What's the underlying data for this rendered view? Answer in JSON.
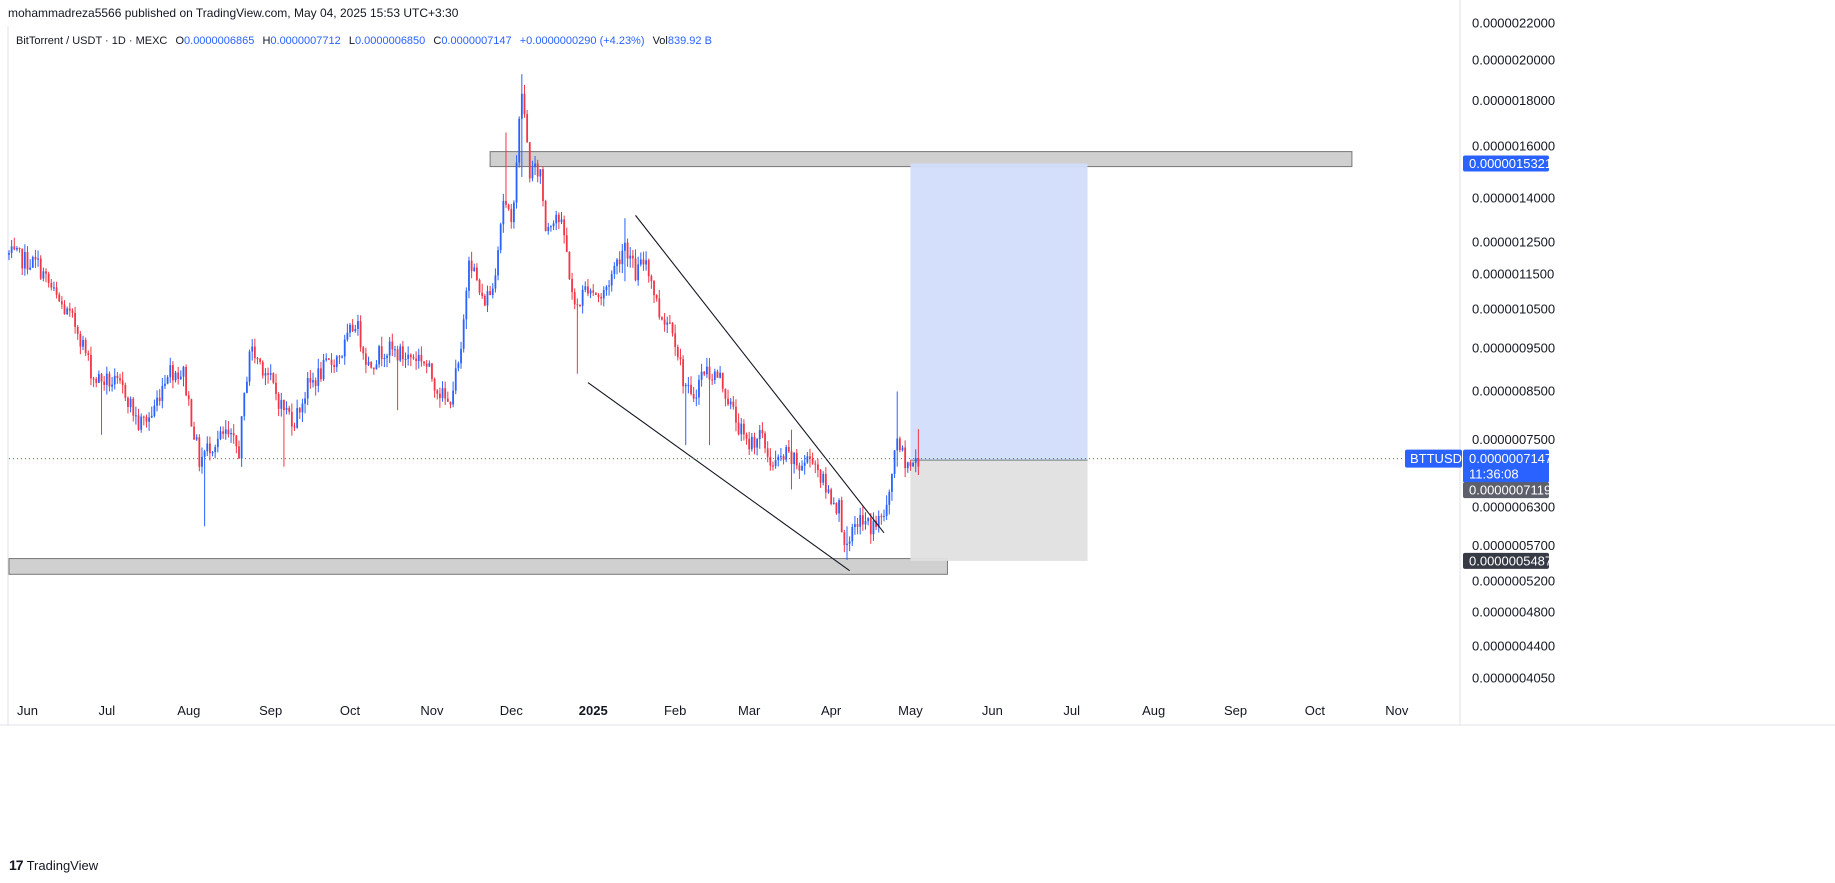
{
  "header": {
    "publisher": "mohammadreza5566 published on TradingView.com, May 04, 2025 15:53 UTC+3:30"
  },
  "legend": {
    "symbol": "BitTorrent / USDT · 1D · MEXC",
    "o_label": "O",
    "o_value": "0.0000006865",
    "h_label": "H",
    "h_value": "0.0000007712",
    "l_label": "L",
    "l_value": "0.0000006850",
    "c_label": "C",
    "c_value": "0.0000007147",
    "change": "+0.0000000290 (+4.23%)",
    "vol_label": "Vol",
    "vol_value": "839.92 B"
  },
  "footer": {
    "brand": "TradingView"
  },
  "colors": {
    "up": "#2962ff",
    "down": "#f23645",
    "zone_fill": "#c8c8c8",
    "zone_stroke": "#777777",
    "target_fill": "#d1ddfb",
    "stop_fill": "#e0e0e0",
    "tag_blue": "#2962ff",
    "tag_dark": "#5d606b",
    "tag_symbol": "#2962ff",
    "price_line": "#2962ff"
  },
  "chart_data": {
    "type": "candlestick",
    "symbol": "BitTorrent / USDT",
    "interval": "1D",
    "exchange": "MEXC",
    "y_scale": "log",
    "ylim": [
      3.9e-07,
      2.22e-06
    ],
    "y_ticks": [
      "0.0000022000",
      "0.0000020000",
      "0.0000018000",
      "0.0000016000",
      "0.0000014000",
      "0.0000012500",
      "0.0000011500",
      "0.0000010500",
      "0.0000009500",
      "0.0000008500",
      "0.0000007500",
      "0.0000006300",
      "0.0000005700",
      "0.0000005200",
      "0.0000004800",
      "0.0000004400",
      "0.0000004050"
    ],
    "x_ticks": [
      "Jun",
      "Jul",
      "Aug",
      "Sep",
      "Oct",
      "Nov",
      "Dec",
      "2025",
      "Feb",
      "Mar",
      "Apr",
      "May",
      "Jun",
      "Jul",
      "Aug",
      "Sep",
      "Oct",
      "Nov"
    ],
    "x_tick_dates": [
      "2024-06-01",
      "2024-07-01",
      "2024-08-01",
      "2024-09-01",
      "2024-10-01",
      "2024-11-01",
      "2024-12-01",
      "2025-01-01",
      "2025-02-01",
      "2025-03-01",
      "2025-04-01",
      "2025-05-01",
      "2025-06-01",
      "2025-07-01",
      "2025-08-01",
      "2025-09-01",
      "2025-10-01",
      "2025-11-01"
    ],
    "x_range": [
      "2024-05-25",
      "2025-11-23"
    ],
    "price_path": [
      [
        "2024-05-25",
        1.21e-06
      ],
      [
        "2024-06-05",
        1.18e-06
      ],
      [
        "2024-06-12",
        1.08e-06
      ],
      [
        "2024-06-20",
        1e-06
      ],
      [
        "2024-06-26",
        8.8e-07
      ],
      [
        "2024-07-03",
        8.7e-07
      ],
      [
        "2024-07-08",
        8.5e-07
      ],
      [
        "2024-07-13",
        7.8e-07
      ],
      [
        "2024-07-18",
        8e-07
      ],
      [
        "2024-07-24",
        9e-07
      ],
      [
        "2024-07-30",
        8.9e-07
      ],
      [
        "2024-08-05",
        7.1e-07
      ],
      [
        "2024-08-09",
        7.4e-07
      ],
      [
        "2024-08-15",
        7.6e-07
      ],
      [
        "2024-08-20",
        7.3e-07
      ],
      [
        "2024-08-24",
        9.5e-07
      ],
      [
        "2024-08-30",
        9e-07
      ],
      [
        "2024-09-05",
        8.2e-07
      ],
      [
        "2024-09-10",
        7.9e-07
      ],
      [
        "2024-09-15",
        8.6e-07
      ],
      [
        "2024-09-21",
        9e-07
      ],
      [
        "2024-09-28",
        9.4e-07
      ],
      [
        "2024-10-03",
        1.02e-06
      ],
      [
        "2024-10-08",
        9.1e-07
      ],
      [
        "2024-10-14",
        9.5e-07
      ],
      [
        "2024-10-22",
        9.3e-07
      ],
      [
        "2024-10-28",
        9.3e-07
      ],
      [
        "2024-11-03",
        8.6e-07
      ],
      [
        "2024-11-07",
        8.2e-07
      ],
      [
        "2024-11-12",
        9.3e-07
      ],
      [
        "2024-11-15",
        1.22e-06
      ],
      [
        "2024-11-20",
        1.07e-06
      ],
      [
        "2024-11-24",
        1.11e-06
      ],
      [
        "2024-11-28",
        1.4e-06
      ],
      [
        "2024-12-01",
        1.3e-06
      ],
      [
        "2024-12-05",
        1.85e-06
      ],
      [
        "2024-12-08",
        1.5e-06
      ],
      [
        "2024-12-12",
        1.5e-06
      ],
      [
        "2024-12-14",
        1.3e-06
      ],
      [
        "2024-12-18",
        1.35e-06
      ],
      [
        "2024-12-21",
        1.27e-06
      ],
      [
        "2024-12-25",
        1.05e-06
      ],
      [
        "2024-12-30",
        1.12e-06
      ],
      [
        "2025-01-04",
        1.08e-06
      ],
      [
        "2025-01-08",
        1.15e-06
      ],
      [
        "2025-01-13",
        1.25e-06
      ],
      [
        "2025-01-17",
        1.15e-06
      ],
      [
        "2025-01-21",
        1.2e-06
      ],
      [
        "2025-01-26",
        1.04e-06
      ],
      [
        "2025-01-31",
        1.01e-06
      ],
      [
        "2025-02-04",
        8.8e-07
      ],
      [
        "2025-02-07",
        8.3e-07
      ],
      [
        "2025-02-12",
        9e-07
      ],
      [
        "2025-02-18",
        8.8e-07
      ],
      [
        "2025-02-24",
        7.9e-07
      ],
      [
        "2025-02-28",
        7.4e-07
      ],
      [
        "2025-03-05",
        7.6e-07
      ],
      [
        "2025-03-10",
        7e-07
      ],
      [
        "2025-03-15",
        7.2e-07
      ],
      [
        "2025-03-20",
        7e-07
      ],
      [
        "2025-03-25",
        7.2e-07
      ],
      [
        "2025-03-30",
        6.6e-07
      ],
      [
        "2025-04-04",
        6.3e-07
      ],
      [
        "2025-04-07",
        5.6e-07
      ],
      [
        "2025-04-11",
        6.1e-07
      ],
      [
        "2025-04-16",
        6e-07
      ],
      [
        "2025-04-20",
        6.1e-07
      ],
      [
        "2025-04-23",
        6.4e-07
      ],
      [
        "2025-04-25",
        7.4e-07
      ],
      [
        "2025-04-27",
        7.3e-07
      ],
      [
        "2025-05-01",
        7e-07
      ],
      [
        "2025-05-04",
        7.147e-07
      ]
    ],
    "big_wicks": [
      [
        "2024-06-29",
        7.6e-07,
        8.8e-07
      ],
      [
        "2024-08-07",
        6e-07,
        7.2e-07
      ],
      [
        "2024-09-06",
        7e-07,
        8e-07
      ],
      [
        "2024-10-19",
        8.1e-07,
        9.1e-07
      ],
      [
        "2024-11-29",
        1.37e-06,
        1.66e-06
      ],
      [
        "2024-12-05",
        1.48e-06,
        1.93e-06
      ],
      [
        "2024-12-26",
        8.9e-07,
        1.06e-06
      ],
      [
        "2025-01-13",
        1.13e-06,
        1.33e-06
      ],
      [
        "2025-02-05",
        7.4e-07,
        8.6e-07
      ],
      [
        "2025-02-14",
        7.4e-07,
        8.6e-07
      ],
      [
        "2025-03-17",
        6.6e-07,
        7.7e-07
      ],
      [
        "2025-04-07",
        5.5e-07,
        6e-07
      ],
      [
        "2025-04-22",
        6.1e-07,
        6.5e-07
      ],
      [
        "2025-04-26",
        7e-07,
        8.5e-07
      ],
      [
        "2025-05-04",
        6.85e-07,
        7.712e-07
      ]
    ],
    "zones": [
      {
        "from": "2024-11-23",
        "to": "2025-10-15",
        "low": 1.52e-06,
        "high": 1.58e-06
      },
      {
        "from": "2024-05-25",
        "to": "2025-05-15",
        "low": 5.3e-07,
        "high": 5.52e-07
      }
    ],
    "trendlines": [
      {
        "from": [
          "2025-01-17",
          1.34e-06
        ],
        "to": [
          "2025-04-21",
          5.9e-07
        ]
      },
      {
        "from": [
          "2024-12-30",
          8.7e-07
        ],
        "to": [
          "2025-04-08",
          5.35e-07
        ]
      }
    ],
    "position": {
      "from": "2025-05-01",
      "to": "2025-07-07",
      "entry": 7.119e-07,
      "target": 1.5321e-06,
      "stop": 5.487e-07
    },
    "last_price": 7.147e-07,
    "price_tags": {
      "target": "0.0000015321",
      "symbol": "BTTUSDT",
      "last": "0.0000007147",
      "countdown": "11:36:08",
      "entry": "0.0000007119",
      "stop": "0.0000005487"
    }
  }
}
